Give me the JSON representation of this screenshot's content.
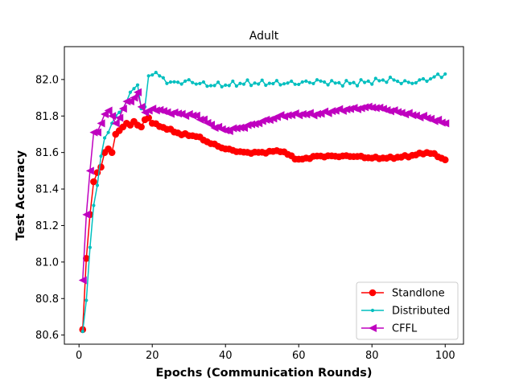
{
  "chart_data": {
    "type": "line",
    "title": "Adult",
    "xlabel": "Epochs (Communication Rounds)",
    "ylabel": "Test Accuracy",
    "xlim": [
      -4,
      105
    ],
    "ylim": [
      80.55,
      82.18
    ],
    "xticks": [
      0,
      20,
      40,
      60,
      80,
      100
    ],
    "xtick_labels": [
      "0",
      "20",
      "40",
      "60",
      "80",
      "100"
    ],
    "yticks": [
      80.6,
      80.8,
      81.0,
      81.2,
      81.4,
      81.6,
      81.8,
      82.0
    ],
    "ytick_labels": [
      "80.6",
      "80.8",
      "81.0",
      "81.2",
      "81.4",
      "81.6",
      "81.8",
      "82.0"
    ],
    "grid": false,
    "legend_position": "bottom-right",
    "series": [
      {
        "name": "Standlone",
        "color": "#ff0000",
        "marker": "circle",
        "anchors": [
          [
            1,
            80.63
          ],
          [
            2,
            81.02
          ],
          [
            3,
            81.26
          ],
          [
            4,
            81.44
          ],
          [
            5,
            81.49
          ],
          [
            6,
            81.52
          ],
          [
            7,
            81.6
          ],
          [
            8,
            81.62
          ],
          [
            9,
            81.6
          ],
          [
            10,
            81.7
          ],
          [
            11,
            81.72
          ],
          [
            12,
            81.74
          ],
          [
            13,
            81.76
          ],
          [
            14,
            81.75
          ],
          [
            15,
            81.77
          ],
          [
            16,
            81.75
          ],
          [
            17,
            81.74
          ],
          [
            18,
            81.78
          ],
          [
            19,
            81.79
          ],
          [
            20,
            81.76
          ],
          [
            24,
            81.73
          ],
          [
            28,
            81.7
          ],
          [
            32,
            81.69
          ],
          [
            36,
            81.65
          ],
          [
            40,
            81.62
          ],
          [
            45,
            81.6
          ],
          [
            50,
            81.6
          ],
          [
            55,
            81.61
          ],
          [
            60,
            81.56
          ],
          [
            65,
            81.58
          ],
          [
            70,
            81.58
          ],
          [
            75,
            81.58
          ],
          [
            80,
            81.57
          ],
          [
            85,
            81.57
          ],
          [
            90,
            81.58
          ],
          [
            95,
            81.6
          ],
          [
            97,
            81.59
          ],
          [
            100,
            81.56
          ]
        ]
      },
      {
        "name": "Distributed",
        "color": "#00bfbf",
        "marker": "dot",
        "anchors": [
          [
            1,
            80.62
          ],
          [
            2,
            80.79
          ],
          [
            3,
            81.08
          ],
          [
            4,
            81.31
          ],
          [
            5,
            81.42
          ],
          [
            6,
            81.58
          ],
          [
            7,
            81.68
          ],
          [
            8,
            81.71
          ],
          [
            9,
            81.76
          ],
          [
            10,
            81.8
          ],
          [
            11,
            81.82
          ],
          [
            12,
            81.84
          ],
          [
            13,
            81.88
          ],
          [
            14,
            81.93
          ],
          [
            15,
            81.95
          ],
          [
            16,
            81.97
          ],
          [
            17,
            81.84
          ],
          [
            18,
            81.85
          ],
          [
            19,
            82.02
          ],
          [
            21,
            82.03
          ],
          [
            25,
            81.98
          ],
          [
            30,
            81.99
          ],
          [
            35,
            81.97
          ],
          [
            40,
            81.97
          ],
          [
            45,
            81.98
          ],
          [
            50,
            81.98
          ],
          [
            55,
            81.98
          ],
          [
            60,
            81.98
          ],
          [
            65,
            81.99
          ],
          [
            70,
            81.98
          ],
          [
            75,
            81.98
          ],
          [
            80,
            81.99
          ],
          [
            85,
            82.0
          ],
          [
            90,
            81.98
          ],
          [
            95,
            82.0
          ],
          [
            100,
            82.03
          ]
        ]
      },
      {
        "name": "CFFL",
        "color": "#bf00bf",
        "marker": "triangle-left",
        "anchors": [
          [
            1,
            80.9
          ],
          [
            2,
            81.26
          ],
          [
            3,
            81.5
          ],
          [
            4,
            81.71
          ],
          [
            5,
            81.71
          ],
          [
            6,
            81.76
          ],
          [
            7,
            81.81
          ],
          [
            8,
            81.83
          ],
          [
            9,
            81.8
          ],
          [
            10,
            81.76
          ],
          [
            11,
            81.79
          ],
          [
            12,
            81.84
          ],
          [
            13,
            81.88
          ],
          [
            14,
            81.88
          ],
          [
            15,
            81.9
          ],
          [
            16,
            81.93
          ],
          [
            17,
            81.85
          ],
          [
            18,
            81.82
          ],
          [
            20,
            81.84
          ],
          [
            24,
            81.82
          ],
          [
            28,
            81.81
          ],
          [
            32,
            81.8
          ],
          [
            36,
            81.75
          ],
          [
            40,
            81.72
          ],
          [
            45,
            81.74
          ],
          [
            50,
            81.77
          ],
          [
            55,
            81.8
          ],
          [
            60,
            81.81
          ],
          [
            65,
            81.81
          ],
          [
            70,
            81.83
          ],
          [
            75,
            81.84
          ],
          [
            80,
            81.85
          ],
          [
            85,
            81.83
          ],
          [
            90,
            81.81
          ],
          [
            95,
            81.79
          ],
          [
            100,
            81.76
          ]
        ]
      }
    ]
  }
}
